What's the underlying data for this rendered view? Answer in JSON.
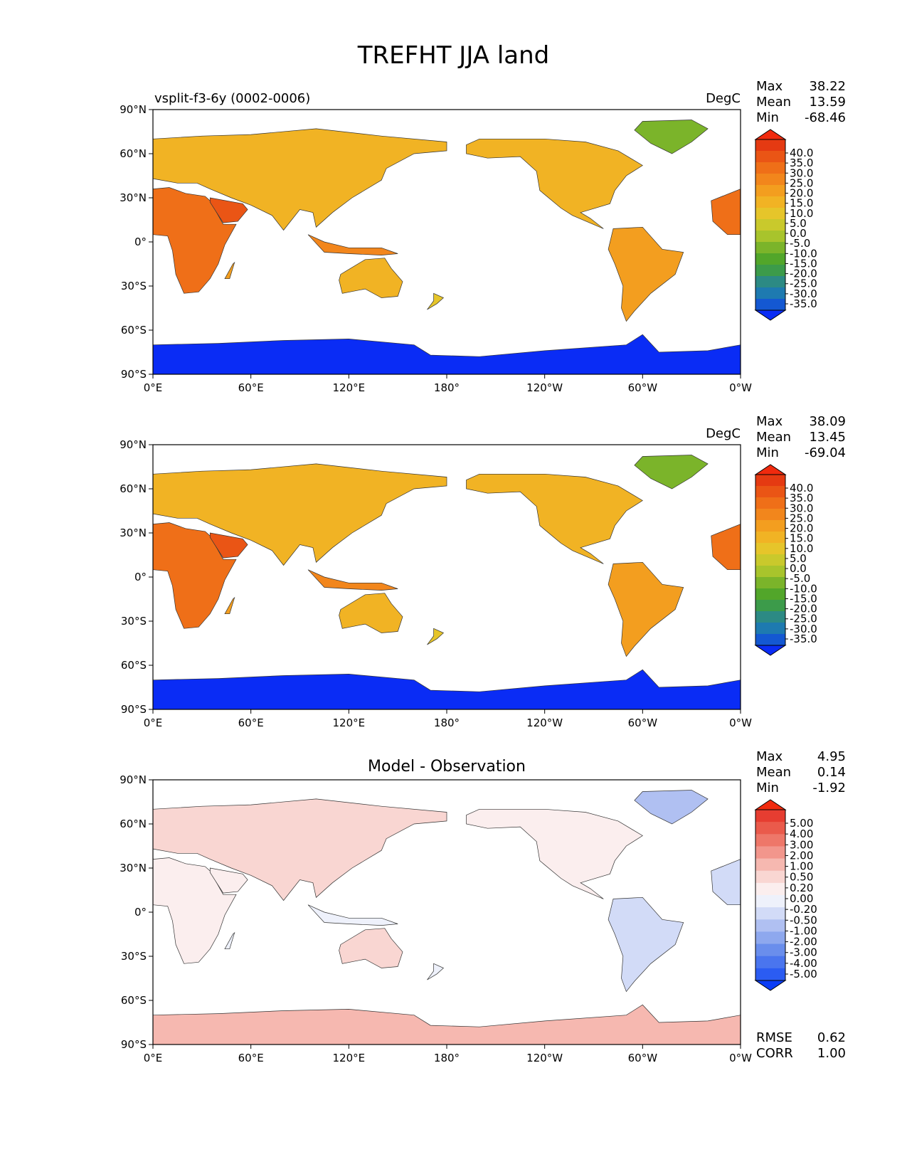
{
  "figure": {
    "title": "TREFHT JJA land"
  },
  "axes": {
    "x_ticks": [
      "0°E",
      "60°E",
      "120°E",
      "180°",
      "120°W",
      "60°W",
      "0°W"
    ],
    "y_ticks": [
      "90°N",
      "60°N",
      "30°N",
      "0°",
      "30°S",
      "60°S",
      "90°S"
    ]
  },
  "colors": {
    "temperature_levels": [
      "#0a2cf5",
      "#1458d2",
      "#1e7ab0",
      "#2c8a84",
      "#3c9b4a",
      "#52a62a",
      "#7bb42a",
      "#a8c42c",
      "#c9c92c",
      "#e6c52a",
      "#f1b324",
      "#f39e1f",
      "#f2861c",
      "#ef6f18",
      "#ea5515",
      "#e53a12",
      "#f02a0e"
    ],
    "difference_levels": [
      "#0a3cf5",
      "#2b5cf2",
      "#4a75ee",
      "#6a8eec",
      "#8ea8ee",
      "#b0c0f2",
      "#d2dbf7",
      "#eef1fb",
      "#fbeeee",
      "#f9d6d2",
      "#f6b8b0",
      "#f2968c",
      "#ee7769",
      "#ea5a4b",
      "#e63d31",
      "#f02a0e"
    ]
  },
  "panels": [
    {
      "left_title": "vsplit-f3-6y (0002-0006)",
      "units": "DegC",
      "center_title": "",
      "stats": [
        {
          "label": "Max",
          "value": "38.22"
        },
        {
          "label": "Mean",
          "value": "13.59"
        },
        {
          "label": "Min",
          "value": "-68.46"
        }
      ],
      "colorbar_labels": [
        "40.0",
        "35.0",
        "30.0",
        "25.0",
        "20.0",
        "15.0",
        "10.0",
        "5.0",
        "0.0",
        "-5.0",
        "-10.0",
        "-15.0",
        "-20.0",
        "-25.0",
        "-30.0",
        "-35.0"
      ],
      "bottom_stats": []
    },
    {
      "left_title": "",
      "units": "DegC",
      "center_title": "",
      "stats": [
        {
          "label": "Max",
          "value": "38.09"
        },
        {
          "label": "Mean",
          "value": "13.45"
        },
        {
          "label": "Min",
          "value": "-69.04"
        }
      ],
      "colorbar_labels": [
        "40.0",
        "35.0",
        "30.0",
        "25.0",
        "20.0",
        "15.0",
        "10.0",
        "5.0",
        "0.0",
        "-5.0",
        "-10.0",
        "-15.0",
        "-20.0",
        "-25.0",
        "-30.0",
        "-35.0"
      ],
      "bottom_stats": []
    },
    {
      "left_title": "",
      "units": "",
      "center_title": "Model - Observation",
      "stats": [
        {
          "label": "Max",
          "value": "4.95"
        },
        {
          "label": "Mean",
          "value": "0.14"
        },
        {
          "label": "Min",
          "value": "-1.92"
        }
      ],
      "colorbar_labels": [
        "5.00",
        "4.00",
        "3.00",
        "2.00",
        "1.00",
        "0.50",
        "0.20",
        "0.00",
        "-0.20",
        "-0.50",
        "-1.00",
        "-2.00",
        "-3.00",
        "-4.00",
        "-5.00"
      ],
      "bottom_stats": [
        {
          "label": "RMSE",
          "value": "0.62"
        },
        {
          "label": "CORR",
          "value": "1.00"
        }
      ]
    }
  ],
  "chart_data": [
    {
      "type": "heatmap",
      "title": "TREFHT JJA land",
      "subtitle": "vsplit-f3-6y (0002-0006)",
      "units": "DegC",
      "xlim": [
        0,
        360
      ],
      "ylim": [
        -90,
        90
      ],
      "stats": {
        "max": 38.22,
        "mean": 13.59,
        "min": -68.46
      },
      "levels": [
        -35,
        -30,
        -25,
        -20,
        -15,
        -10,
        -5,
        0,
        5,
        10,
        15,
        20,
        25,
        30,
        35,
        40
      ]
    },
    {
      "type": "heatmap",
      "units": "DegC",
      "xlim": [
        0,
        360
      ],
      "ylim": [
        -90,
        90
      ],
      "stats": {
        "max": 38.09,
        "mean": 13.45,
        "min": -69.04
      },
      "levels": [
        -35,
        -30,
        -25,
        -20,
        -15,
        -10,
        -5,
        0,
        5,
        10,
        15,
        20,
        25,
        30,
        35,
        40
      ]
    },
    {
      "type": "heatmap",
      "title": "Model - Observation",
      "xlim": [
        0,
        360
      ],
      "ylim": [
        -90,
        90
      ],
      "stats": {
        "max": 4.95,
        "mean": 0.14,
        "min": -1.92,
        "rmse": 0.62,
        "corr": 1.0
      },
      "levels": [
        -5,
        -4,
        -3,
        -2,
        -1,
        -0.5,
        -0.2,
        0,
        0.2,
        0.5,
        1,
        2,
        3,
        4,
        5
      ]
    }
  ]
}
